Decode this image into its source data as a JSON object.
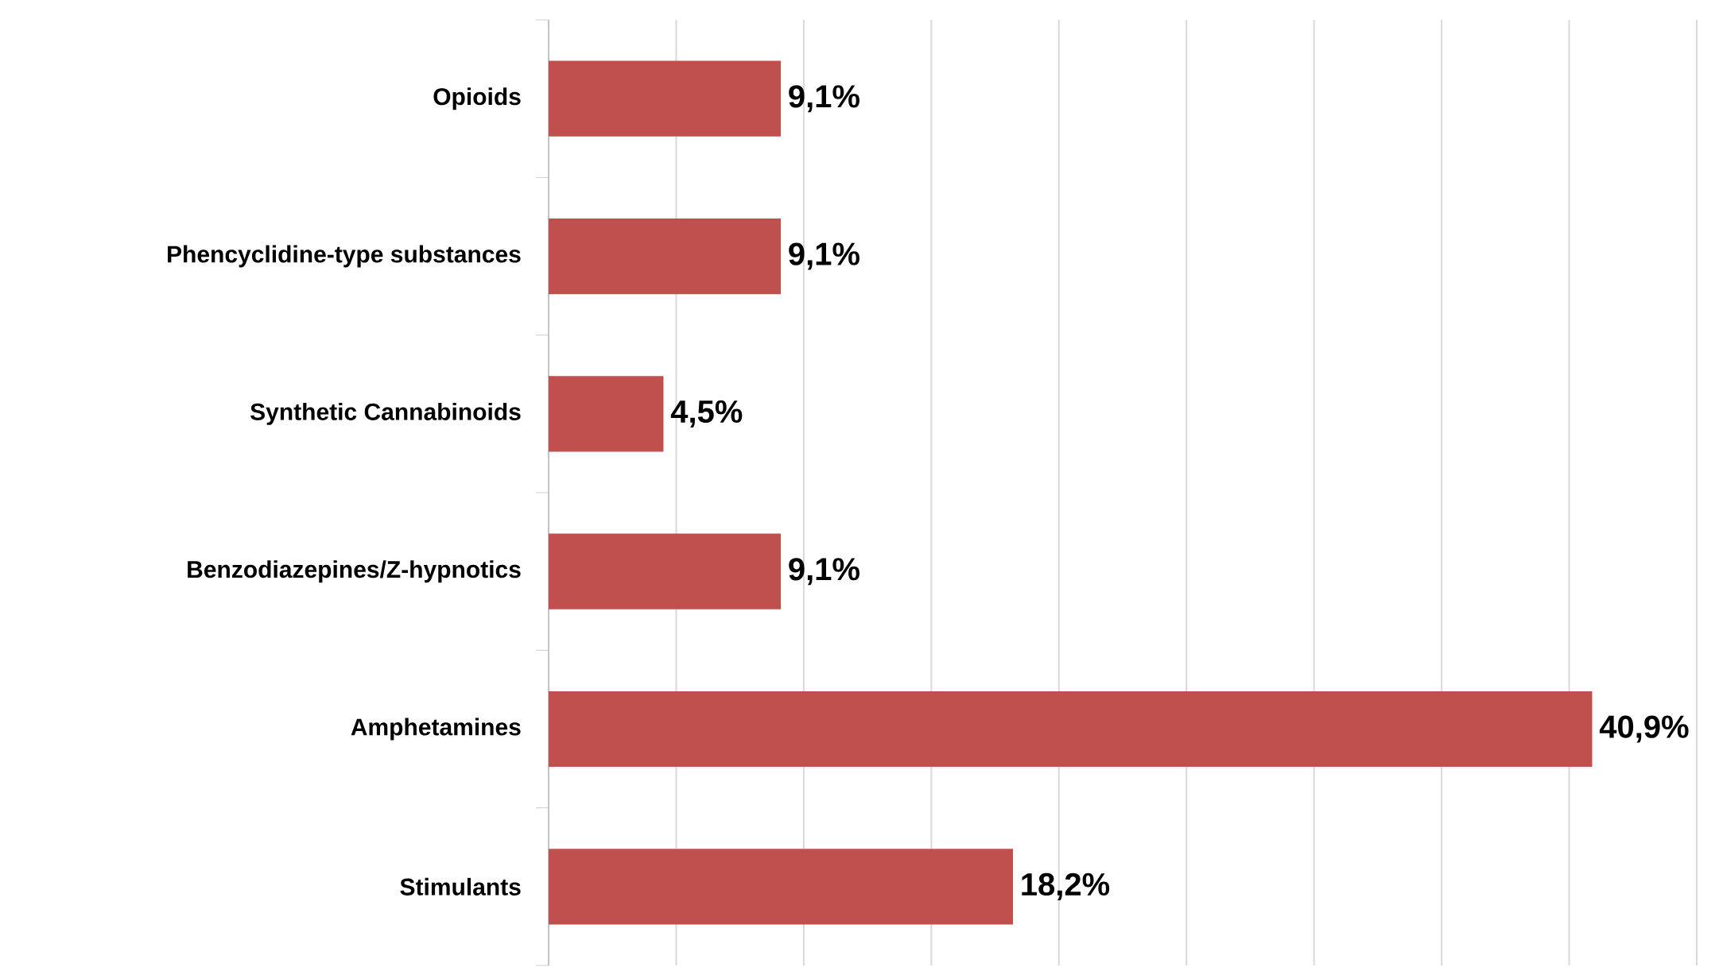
{
  "chart_data": {
    "type": "bar",
    "orientation": "horizontal",
    "categories": [
      "Opioids",
      "Phencyclidine-type substances",
      "Synthetic Cannabinoids",
      "Benzodiazepines/Z-hypnotics",
      "Amphetamines",
      "Stimulants"
    ],
    "values": [
      9.1,
      9.1,
      4.5,
      9.1,
      40.9,
      18.2
    ],
    "value_labels": [
      "9,1%",
      "9,1%",
      "4,5%",
      "9,1%",
      "40,9%",
      "18,2%"
    ],
    "color": "#c0504d",
    "xlim": [
      0,
      45
    ],
    "xticks": [
      {
        "value": 0,
        "label": null
      },
      {
        "value": 5,
        "label": null
      },
      {
        "value": 10,
        "label": null
      },
      {
        "value": 15,
        "label": null
      },
      {
        "value": 20,
        "label": null
      },
      {
        "value": 25,
        "label": null
      },
      {
        "value": 30,
        "label": null
      },
      {
        "value": 35,
        "label": null
      },
      {
        "value": 40,
        "label": null
      },
      {
        "value": 45,
        "label": null
      }
    ],
    "grid": "x",
    "tick_labels": "y"
  }
}
